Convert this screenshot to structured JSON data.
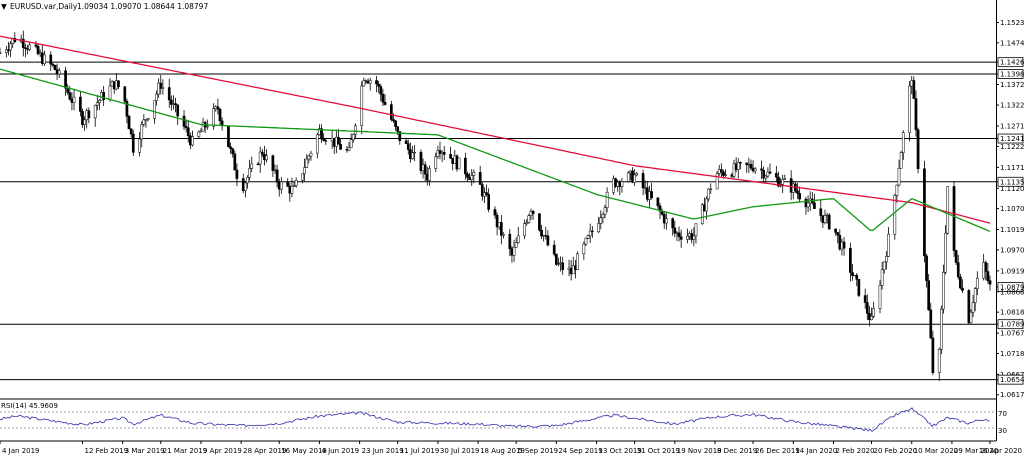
{
  "header": {
    "collapse_glyph": "▼",
    "symbol": "EURUSD.var,Daily",
    "ohlc": "1.09034 1.09070 1.08644 1.08797"
  },
  "price_axis": {
    "ticks": [
      "1.15235",
      "1.14740",
      "1.14269",
      "1.13980",
      "1.13725",
      "1.13225",
      "1.12715",
      "1.12410",
      "1.12220",
      "1.11710",
      "1.11358",
      "1.11200",
      "1.10705",
      "1.10195",
      "1.09700",
      "1.09190",
      "1.08797",
      "1.08680",
      "1.08185",
      "1.07892",
      "1.07675",
      "1.07180",
      "1.06670",
      "1.06542",
      "1.06175"
    ],
    "boxed": [
      "1.14269",
      "1.13980",
      "1.12410",
      "1.11358",
      "1.08797",
      "1.07892",
      "1.06542"
    ]
  },
  "date_axis": {
    "labels": [
      "4 Jan 2019",
      "12 Feb 2019",
      "3 Mar 2019",
      "21 Mar 2019",
      "9 Apr 2019",
      "28 Apr 2019",
      "16 May 2019",
      "4 Jun 2019",
      "23 Jun 2019",
      "11 Jul 2019",
      "30 Jul 2019",
      "18 Aug 2019",
      "5 Sep 2019",
      "24 Sep 2019",
      "13 Oct 2019",
      "31 Oct 2019",
      "19 Nov 2019",
      "8 Dec 2019",
      "26 Dec 2019",
      "14 Jan 2020",
      "2 Feb 2020",
      "20 Feb 2020",
      "10 Mar 2020",
      "29 Mar 2020",
      "16 Apr 2020"
    ]
  },
  "rsi": {
    "title": "RSI(14) 45.9609",
    "levels": [
      "70",
      "30"
    ]
  },
  "colors": {
    "bull_candle": "#ffffff",
    "bear_candle": "#000000",
    "ma_slow": "#e0103a",
    "ma_fast": "#119911",
    "rsi_line": "#2f2fa8",
    "sr_lines": "#000000"
  },
  "chart_data": [
    {
      "type": "candlestick",
      "title": "EURUSD.var,Daily",
      "ylim": [
        1.0612,
        1.1549
      ],
      "x_range": [
        "4 Jan 2019",
        "16 Apr 2020"
      ],
      "horizontal_levels": [
        1.14269,
        1.1398,
        1.1241,
        1.11358,
        1.07892,
        1.06542
      ],
      "last_price": 1.08797,
      "anchors": [
        {
          "d": "4 Jan 2019",
          "v": 1.145
        },
        {
          "d": "12 Jan 2019",
          "v": 1.149
        },
        {
          "d": "30 Jan 2019",
          "v": 1.141
        },
        {
          "d": "12 Feb 2019",
          "v": 1.129
        },
        {
          "d": "27 Feb 2019",
          "v": 1.1375
        },
        {
          "d": "3 Mar 2019",
          "v": 1.136
        },
        {
          "d": "8 Mar 2019",
          "v": 1.122
        },
        {
          "d": "21 Mar 2019",
          "v": 1.1375
        },
        {
          "d": "5 Apr 2019",
          "v": 1.123
        },
        {
          "d": "17 Apr 2019",
          "v": 1.1315
        },
        {
          "d": "28 Apr 2019",
          "v": 1.112
        },
        {
          "d": "8 May 2019",
          "v": 1.121
        },
        {
          "d": "16 May 2019",
          "v": 1.113
        },
        {
          "d": "23 May 2019",
          "v": 1.1115
        },
        {
          "d": "4 Jun 2019",
          "v": 1.126
        },
        {
          "d": "18 Jun 2019",
          "v": 1.1205
        },
        {
          "d": "25 Jun 2019",
          "v": 1.1395
        },
        {
          "d": "1 Jul 2019",
          "v": 1.1375
        },
        {
          "d": "11 Jul 2019",
          "v": 1.125
        },
        {
          "d": "25 Jul 2019",
          "v": 1.115
        },
        {
          "d": "30 Jul 2019",
          "v": 1.1225
        },
        {
          "d": "18 Aug 2019",
          "v": 1.1135
        },
        {
          "d": "3 Sep 2019",
          "v": 1.0955
        },
        {
          "d": "12 Sep 2019",
          "v": 1.1075
        },
        {
          "d": "24 Sep 2019",
          "v": 1.0935
        },
        {
          "d": "1 Oct 2019",
          "v": 1.0915
        },
        {
          "d": "13 Oct 2019",
          "v": 1.1035
        },
        {
          "d": "21 Oct 2019",
          "v": 1.1135
        },
        {
          "d": "31 Oct 2019",
          "v": 1.115
        },
        {
          "d": "19 Nov 2019",
          "v": 1.101
        },
        {
          "d": "28 Nov 2019",
          "v": 1.1005
        },
        {
          "d": "8 Dec 2019",
          "v": 1.1155
        },
        {
          "d": "26 Dec 2019",
          "v": 1.1175
        },
        {
          "d": "14 Jan 2020",
          "v": 1.112
        },
        {
          "d": "2 Feb 2020",
          "v": 1.1025
        },
        {
          "d": "20 Feb 2020",
          "v": 1.0795
        },
        {
          "d": "28 Feb 2020",
          "v": 1.0995
        },
        {
          "d": "10 Mar 2020",
          "v": 1.1395
        },
        {
          "d": "20 Mar 2020",
          "v": 1.0675
        },
        {
          "d": "23 Mar 2020",
          "v": 1.0715
        },
        {
          "d": "27 Mar 2020",
          "v": 1.1125
        },
        {
          "d": "29 Mar 2020",
          "v": 1.098
        },
        {
          "d": "6 Apr 2020",
          "v": 1.0805
        },
        {
          "d": "12 Apr 2020",
          "v": 1.0945
        },
        {
          "d": "16 Apr 2020",
          "v": 1.088
        }
      ],
      "series": [
        {
          "name": "slow_ma",
          "points": [
            {
              "d": "4 Jan 2019",
              "v": 1.149
            },
            {
              "d": "23 Jun 2019",
              "v": 1.1315
            },
            {
              "d": "31 Oct 2019",
              "v": 1.1175
            },
            {
              "d": "10 Mar 2020",
              "v": 1.1085
            },
            {
              "d": "16 Apr 2020",
              "v": 1.1035
            }
          ]
        },
        {
          "name": "fast_ma",
          "points": [
            {
              "d": "4 Jan 2019",
              "v": 1.141
            },
            {
              "d": "9 Apr 2019",
              "v": 1.1275
            },
            {
              "d": "30 Jul 2019",
              "v": 1.125
            },
            {
              "d": "13 Oct 2019",
              "v": 1.1105
            },
            {
              "d": "28 Nov 2019",
              "v": 1.1045
            },
            {
              "d": "26 Dec 2019",
              "v": 1.1075
            },
            {
              "d": "2 Feb 2020",
              "v": 1.1095
            },
            {
              "d": "20 Feb 2020",
              "v": 1.1015
            },
            {
              "d": "10 Mar 2020",
              "v": 1.1095
            },
            {
              "d": "16 Apr 2020",
              "v": 1.1015
            }
          ]
        }
      ]
    },
    {
      "type": "line",
      "title": "RSI(14) 45.9609",
      "ylim": [
        0,
        100
      ],
      "levels": [
        70,
        30
      ],
      "last_value": 45.9609,
      "series": [
        {
          "name": "RSI(14)",
          "points": [
            {
              "d": "4 Jan 2019",
              "v": 52
            },
            {
              "d": "12 Jan 2019",
              "v": 60
            },
            {
              "d": "12 Feb 2019",
              "v": 38
            },
            {
              "d": "3 Mar 2019",
              "v": 55
            },
            {
              "d": "8 Mar 2019",
              "v": 40
            },
            {
              "d": "21 Mar 2019",
              "v": 62
            },
            {
              "d": "5 Apr 2019",
              "v": 42
            },
            {
              "d": "28 Apr 2019",
              "v": 36
            },
            {
              "d": "16 May 2019",
              "v": 42
            },
            {
              "d": "4 Jun 2019",
              "v": 60
            },
            {
              "d": "23 Jun 2019",
              "v": 68
            },
            {
              "d": "11 Jul 2019",
              "v": 45
            },
            {
              "d": "18 Aug 2019",
              "v": 40
            },
            {
              "d": "3 Sep 2019",
              "v": 34
            },
            {
              "d": "24 Sep 2019",
              "v": 36
            },
            {
              "d": "21 Oct 2019",
              "v": 62
            },
            {
              "d": "19 Nov 2019",
              "v": 40
            },
            {
              "d": "8 Dec 2019",
              "v": 58
            },
            {
              "d": "26 Dec 2019",
              "v": 64
            },
            {
              "d": "14 Jan 2020",
              "v": 46
            },
            {
              "d": "20 Feb 2020",
              "v": 24
            },
            {
              "d": "2 Mar 2020",
              "v": 62
            },
            {
              "d": "10 Mar 2020",
              "v": 78
            },
            {
              "d": "20 Mar 2020",
              "v": 35
            },
            {
              "d": "27 Mar 2020",
              "v": 56
            },
            {
              "d": "6 Apr 2020",
              "v": 42
            },
            {
              "d": "12 Apr 2020",
              "v": 52
            },
            {
              "d": "16 Apr 2020",
              "v": 46
            }
          ]
        }
      ]
    }
  ]
}
